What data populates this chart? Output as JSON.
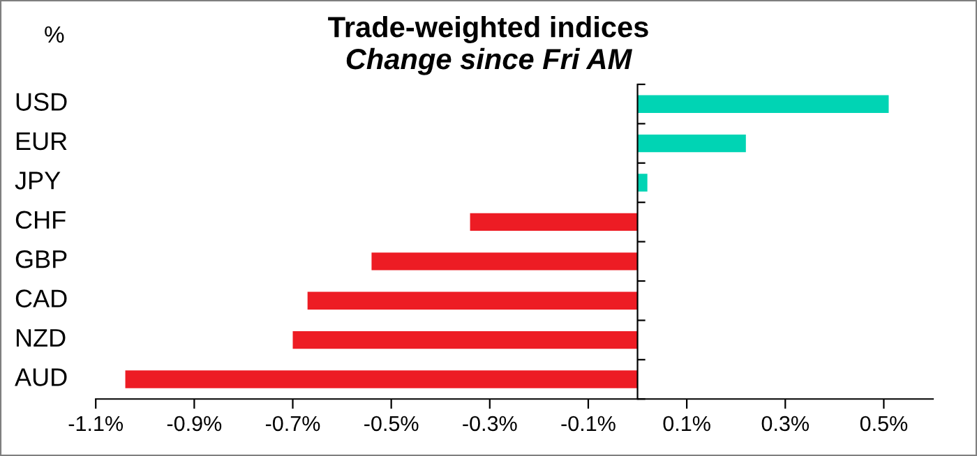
{
  "chart_data": {
    "type": "bar",
    "orientation": "horizontal",
    "title": "Trade-weighted indices",
    "subtitle": "Change since Fri AM",
    "ylabel": "%",
    "categories": [
      "USD",
      "EUR",
      "JPY",
      "CHF",
      "GBP",
      "CAD",
      "NZD",
      "AUD"
    ],
    "values": [
      0.51,
      0.22,
      0.02,
      -0.34,
      -0.54,
      -0.67,
      -0.7,
      -1.04
    ],
    "colors": [
      "#00d4b4",
      "#00d4b4",
      "#00d4b4",
      "#ed1c24",
      "#ed1c24",
      "#ed1c24",
      "#ed1c24",
      "#ed1c24"
    ],
    "xlim": [
      -1.1,
      0.6
    ],
    "xticks": [
      {
        "value": -1.1,
        "label": "-1.1%"
      },
      {
        "value": -0.9,
        "label": "-0.9%"
      },
      {
        "value": -0.7,
        "label": "-0.7%"
      },
      {
        "value": -0.5,
        "label": "-0.5%"
      },
      {
        "value": -0.3,
        "label": "-0.3%"
      },
      {
        "value": -0.1,
        "label": "-0.1%"
      },
      {
        "value": 0.1,
        "label": "0.1%"
      },
      {
        "value": 0.3,
        "label": "0.3%"
      },
      {
        "value": 0.5,
        "label": "0.5%"
      }
    ],
    "grid": false,
    "legend": false
  }
}
